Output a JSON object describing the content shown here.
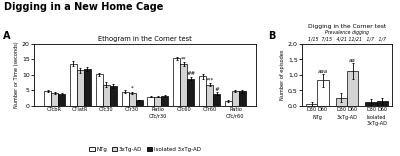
{
  "title": "Digging in a New Home Cage",
  "chart_data": [
    {
      "type": "bar",
      "panel_label": "A",
      "title": "Ethogram in the Corner test",
      "y_label": "Number or Time (seconds)",
      "categories": [
        "CTcbR",
        "CTlatR",
        "CTc30",
        "CTr30",
        "Ratio\nCTc/r30",
        "CTc60",
        "CTr60",
        "Ratio\nCTc/r60"
      ],
      "series": [
        {
          "name": "NTg",
          "color": "white",
          "values": [
            4.8,
            13.5,
            10.2,
            4.6,
            3.0,
            15.3,
            9.5,
            1.6
          ],
          "errors": [
            0.4,
            0.8,
            0.5,
            0.5,
            0.2,
            0.5,
            0.8,
            0.3
          ]
        },
        {
          "name": "3xTg-AD",
          "color": "lightgray",
          "values": [
            4.2,
            11.5,
            6.8,
            4.2,
            3.0,
            13.5,
            6.8,
            4.8
          ],
          "errors": [
            0.4,
            0.8,
            0.8,
            0.4,
            0.2,
            0.6,
            0.5,
            0.4
          ]
        },
        {
          "name": "Isolated 3xTg-AD",
          "color": "#1a1a1a",
          "values": [
            3.8,
            12.0,
            6.5,
            1.8,
            3.3,
            8.8,
            4.0,
            4.8
          ],
          "errors": [
            0.4,
            0.6,
            0.6,
            0.3,
            0.3,
            0.5,
            0.4,
            0.5
          ]
        }
      ],
      "edgecolor": "black",
      "ylim": [
        0,
        20
      ],
      "yticks": [
        0,
        5,
        10,
        15,
        20
      ],
      "legend": "lower center",
      "annotations": [
        {
          "text": "*",
          "category": "CTr30",
          "series": "3xTg-AD"
        },
        {
          "text": "**",
          "category": "CTc60",
          "series": "3xTg-AD"
        },
        {
          "text": "##",
          "category": "CTc60",
          "series": "Isolated 3xTg-AD"
        },
        {
          "text": "***",
          "category": "CTr60",
          "series": "3xTg-AD"
        },
        {
          "text": "#",
          "category": "CTr60",
          "series": "Isolated 3xTg-AD"
        }
      ]
    },
    {
      "type": "bar",
      "panel_label": "B",
      "title": "Digging in the Corner test",
      "subtitle": "Prevalence digging",
      "note": "1/15  7/15   4/21 12/21   1/7   1/7",
      "y_label": "Number of episodes",
      "categories": [
        "NTg",
        "3xTg-AD",
        "Isolated\n3xTg-AD"
      ],
      "series": [
        {
          "name": "D30",
          "colors": [
            "white",
            "lightgray",
            "#1a1a1a"
          ],
          "values": [
            0.07,
            0.27,
            0.13
          ],
          "errors": [
            0.07,
            0.15,
            0.1
          ]
        },
        {
          "name": "D60",
          "colors": [
            "white",
            "lightgray",
            "#1a1a1a"
          ],
          "values": [
            0.82,
            1.12,
            0.15
          ],
          "errors": [
            0.2,
            0.25,
            0.12
          ]
        }
      ],
      "edgecolor": "black",
      "ylim": [
        0,
        2.0
      ],
      "yticks": [
        {
          "value": 0.0,
          "label": "0,0"
        },
        {
          "value": 0.5,
          "label": "0,5"
        },
        {
          "value": 1.0,
          "label": "1,0"
        },
        {
          "value": 1.5,
          "label": "1,5"
        },
        {
          "value": 2.0,
          "label": "2,0"
        }
      ],
      "annotations": [
        {
          "text": "aaa",
          "category": "NTg",
          "series": "D60"
        },
        {
          "text": "aa",
          "category": "3xTg-AD",
          "series": "D60"
        }
      ]
    }
  ]
}
